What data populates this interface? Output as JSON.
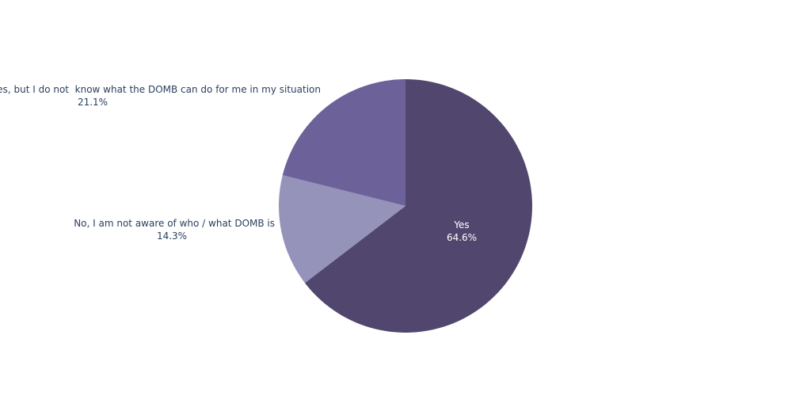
{
  "chart_data": {
    "type": "pie",
    "categories": [
      "Yes",
      "No, I am not aware of who / what DOMB is",
      "Yes, but I do not  know what the DOMB can do for me in my situation"
    ],
    "values": [
      64.6,
      14.3,
      21.1
    ],
    "value_labels": [
      "64.6%",
      "14.3%",
      "21.1%"
    ],
    "colors": [
      "#51476e",
      "#9593ba",
      "#6c6199"
    ]
  }
}
